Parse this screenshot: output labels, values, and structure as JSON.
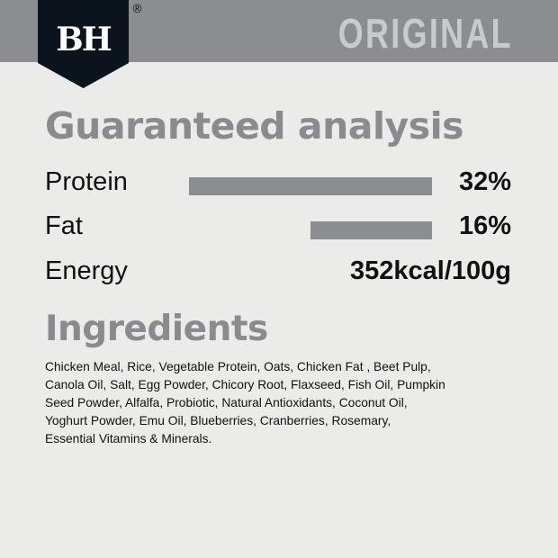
{
  "brand": {
    "logo_text": "BH",
    "registered": "®",
    "variant": "ORIGINAL"
  },
  "colors": {
    "band": "#8b8d90",
    "logo": "#0b141c",
    "heading": "#898b8e",
    "background": "#ebebea"
  },
  "analysis": {
    "title": "Guaranteed analysis",
    "rows": [
      {
        "label": "Protein",
        "value": "32%",
        "percent": 32
      },
      {
        "label": "Fat",
        "value": "16%",
        "percent": 16
      },
      {
        "label": "Energy",
        "value": "352kcal/100g"
      }
    ]
  },
  "ingredients": {
    "title": "Ingredients",
    "lines": [
      "Chicken Meal, Rice, Vegetable Protein, Oats, Chicken Fat , Beet Pulp,",
      "Canola Oil, Salt, Egg Powder, Chicory Root, Flaxseed, Fish Oil, Pumpkin",
      "Seed Powder, Alfalfa, Probiotic, Natural Antioxidants, Coconut Oil,",
      "Yoghurt Powder, Emu Oil, Blueberries, Cranberries, Rosemary,",
      "Essential Vitamins & Minerals."
    ]
  }
}
